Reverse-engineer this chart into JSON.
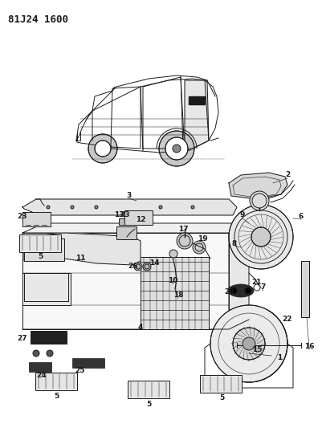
{
  "title": "81J24 1600",
  "bg_color": "#ffffff",
  "line_color": "#1a1a1a",
  "fig_width": 4.01,
  "fig_height": 5.33,
  "dpi": 100,
  "title_fontsize": 9,
  "label_fontsize": 6.5
}
